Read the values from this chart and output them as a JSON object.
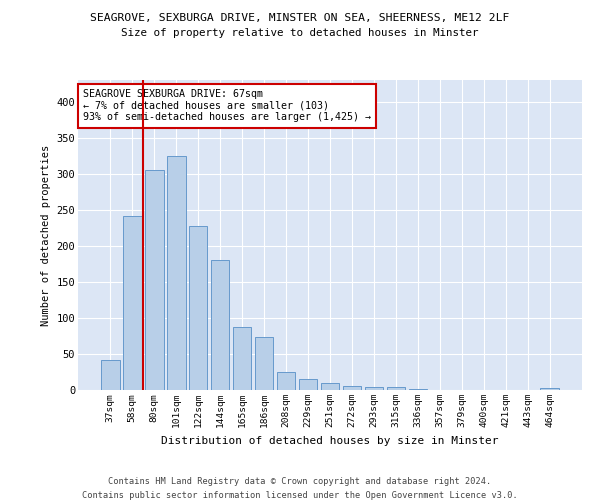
{
  "title1": "SEAGROVE, SEXBURGA DRIVE, MINSTER ON SEA, SHEERNESS, ME12 2LF",
  "title2": "Size of property relative to detached houses in Minster",
  "xlabel": "Distribution of detached houses by size in Minster",
  "ylabel": "Number of detached properties",
  "categories": [
    "37sqm",
    "58sqm",
    "80sqm",
    "101sqm",
    "122sqm",
    "144sqm",
    "165sqm",
    "186sqm",
    "208sqm",
    "229sqm",
    "251sqm",
    "272sqm",
    "293sqm",
    "315sqm",
    "336sqm",
    "357sqm",
    "379sqm",
    "400sqm",
    "421sqm",
    "443sqm",
    "464sqm"
  ],
  "values": [
    42,
    242,
    305,
    325,
    228,
    180,
    88,
    73,
    25,
    15,
    10,
    5,
    4,
    4,
    1,
    0,
    0,
    0,
    0,
    0,
    3
  ],
  "bar_color": "#b8cfe8",
  "bar_edge_color": "#6699cc",
  "vline_color": "#cc0000",
  "annotation_text": "SEAGROVE SEXBURGA DRIVE: 67sqm\n← 7% of detached houses are smaller (103)\n93% of semi-detached houses are larger (1,425) →",
  "annotation_box_facecolor": "#ffffff",
  "annotation_box_edgecolor": "#cc0000",
  "ylim": [
    0,
    430
  ],
  "yticks": [
    0,
    50,
    100,
    150,
    200,
    250,
    300,
    350,
    400
  ],
  "background_color": "#dce6f5",
  "footer1": "Contains HM Land Registry data © Crown copyright and database right 2024.",
  "footer2": "Contains public sector information licensed under the Open Government Licence v3.0."
}
